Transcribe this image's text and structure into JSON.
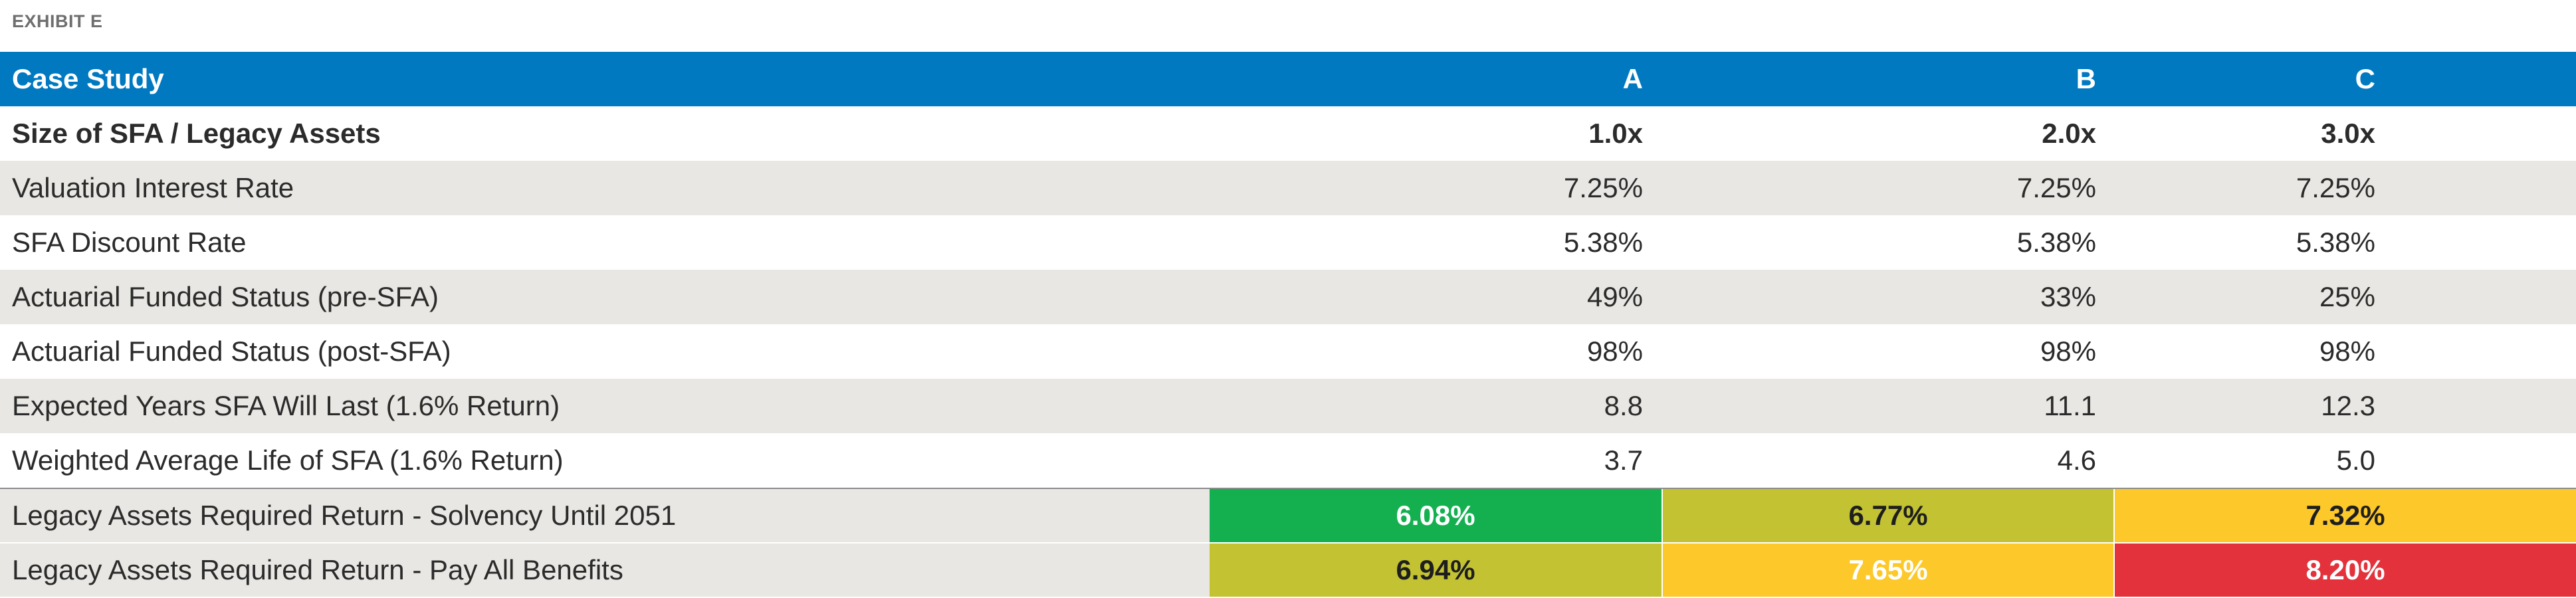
{
  "exhibit_label": "EXHIBIT E",
  "header": {
    "label": "Case Study",
    "a": "A",
    "b": "B",
    "c": "C"
  },
  "rows": [
    {
      "label": "Size of SFA / Legacy Assets",
      "a": "1.0x",
      "b": "2.0x",
      "c": "3.0x"
    },
    {
      "label": "Valuation Interest Rate",
      "a": "7.25%",
      "b": "7.25%",
      "c": "7.25%"
    },
    {
      "label": "SFA Discount Rate",
      "a": "5.38%",
      "b": "5.38%",
      "c": "5.38%"
    },
    {
      "label": "Actuarial Funded Status (pre-SFA)",
      "a": "49%",
      "b": "33%",
      "c": "25%"
    },
    {
      "label": "Actuarial Funded Status (post-SFA)",
      "a": "98%",
      "b": "98%",
      "c": "98%"
    },
    {
      "label": "Expected Years SFA Will Last (1.6% Return)",
      "a": "8.8",
      "b": "11.1",
      "c": "12.3"
    },
    {
      "label": "Weighted Average Life of SFA (1.6% Return)",
      "a": "3.7",
      "b": "4.6",
      "c": "5.0"
    },
    {
      "label": "Legacy Assets Required Return - Solvency Until 2051",
      "a": "6.08%",
      "b": "6.77%",
      "c": "7.32%"
    },
    {
      "label": "Legacy Assets Required Return - Pay All Benefits",
      "a": "6.94%",
      "b": "7.65%",
      "c": "8.20%"
    }
  ],
  "colors": {
    "header_blue": "#0079c1",
    "row_shade": "#e8e7e3",
    "heat_green": "#14b050",
    "heat_olive": "#c2c232",
    "heat_yellow": "#fdc829",
    "heat_red": "#e3323c"
  }
}
